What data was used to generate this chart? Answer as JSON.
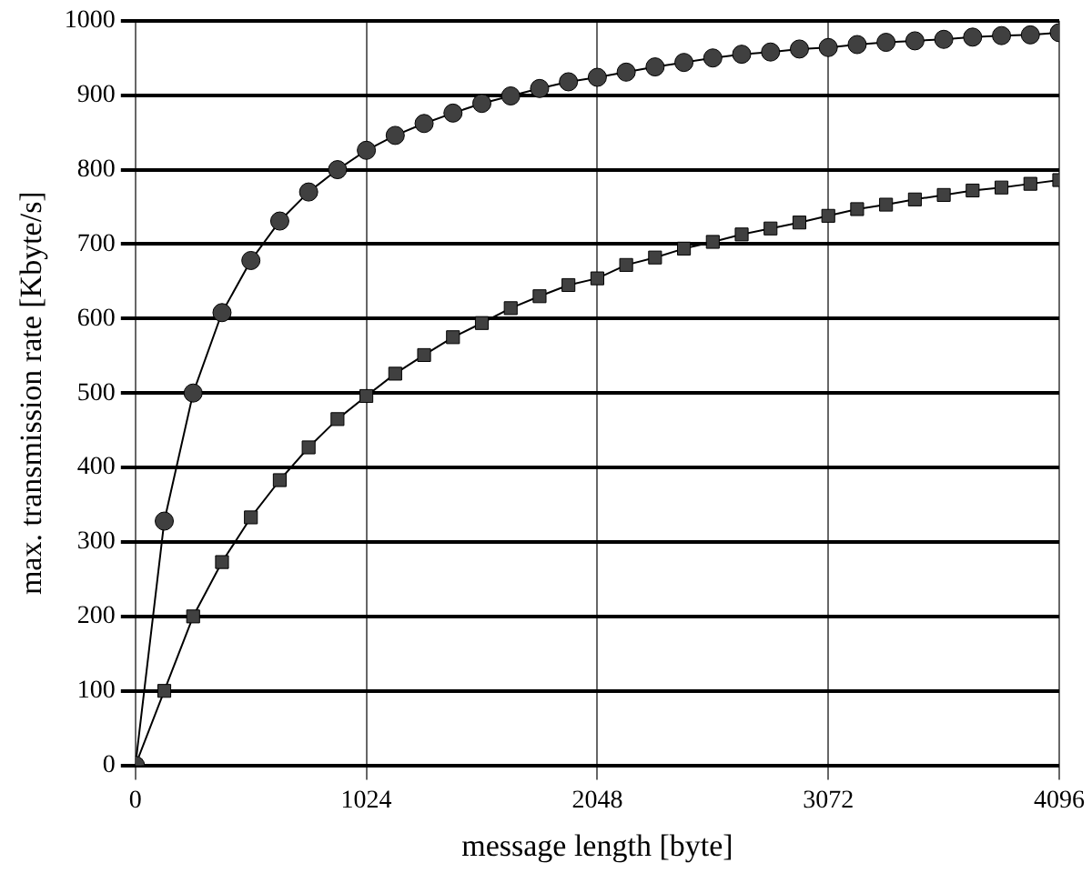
{
  "chart_data": {
    "type": "line",
    "xlabel": "message length [byte]",
    "ylabel": "max. transmission rate [Kbyte/s]",
    "x": [
      0,
      128,
      256,
      384,
      512,
      640,
      768,
      896,
      1024,
      1152,
      1280,
      1408,
      1536,
      1664,
      1792,
      1920,
      2048,
      2176,
      2304,
      2432,
      2560,
      2688,
      2816,
      2944,
      3072,
      3200,
      3328,
      3456,
      3584,
      3712,
      3840,
      3968,
      4096
    ],
    "series": [
      {
        "color": "#404040",
        "marker": "circle",
        "values": [
          0,
          328,
          500,
          608,
          678,
          731,
          770,
          800,
          826,
          846,
          862,
          876,
          889,
          899,
          909,
          918,
          924,
          931,
          938,
          944,
          950,
          955,
          958,
          962,
          964,
          968,
          971,
          973,
          975,
          978,
          980,
          981,
          984
        ]
      },
      {
        "color": "#404040",
        "marker": "square",
        "values": [
          0,
          100,
          200,
          273,
          333,
          383,
          427,
          465,
          496,
          526,
          551,
          575,
          594,
          614,
          630,
          645,
          654,
          672,
          682,
          694,
          703,
          713,
          721,
          729,
          738,
          747,
          753,
          760,
          766,
          772,
          776,
          781,
          786
        ]
      }
    ],
    "xlim": [
      0,
      4096
    ],
    "xticks": [
      0,
      1024,
      2048,
      3072,
      4096
    ],
    "ylim": [
      0,
      1000
    ],
    "yticks": [
      0,
      100,
      200,
      300,
      400,
      500,
      600,
      700,
      800,
      900,
      1000
    ],
    "grid": true,
    "legend": false,
    "line_style": "solid"
  }
}
